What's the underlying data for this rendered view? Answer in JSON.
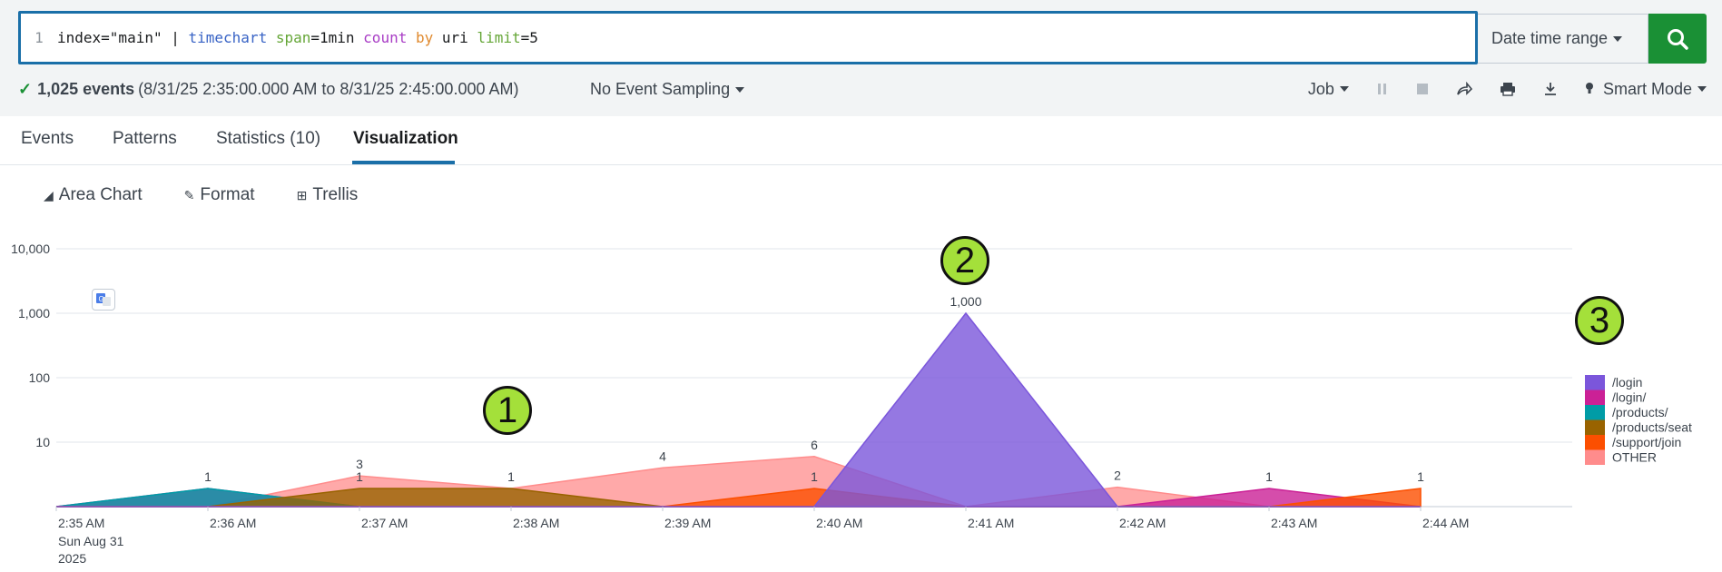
{
  "search": {
    "line_number": "1",
    "query_parts": [
      {
        "t": "index=\"main\" | ",
        "c": ""
      },
      {
        "t": "timechart",
        "c": "q-cmd"
      },
      {
        "t": " ",
        "c": ""
      },
      {
        "t": "span",
        "c": "q-arg"
      },
      {
        "t": "=1min ",
        "c": ""
      },
      {
        "t": "count",
        "c": "q-fn"
      },
      {
        "t": " ",
        "c": ""
      },
      {
        "t": "by",
        "c": "q-kw"
      },
      {
        "t": " uri ",
        "c": ""
      },
      {
        "t": "limit",
        "c": "q-arg"
      },
      {
        "t": "=5",
        "c": ""
      }
    ],
    "date_range_label": "Date time range",
    "search_icon": "search-icon"
  },
  "status": {
    "events": "1,025 events",
    "range": "(8/31/25 2:35:00.000 AM to 8/31/25 2:45:00.000 AM)",
    "sampling": "No Event Sampling",
    "job": "Job",
    "mode": "Smart Mode"
  },
  "tabs": {
    "events": "Events",
    "patterns": "Patterns",
    "statistics": "Statistics (10)",
    "visualization": "Visualization"
  },
  "viz_tools": {
    "area_chart": "Area Chart",
    "format": "Format",
    "trellis": "Trellis"
  },
  "badges": {
    "one": "1",
    "two": "2",
    "three": "3"
  },
  "chart_data": {
    "type": "area",
    "yscale": "log",
    "y_ticks": [
      "10,000",
      "1,000",
      "100",
      "10"
    ],
    "y_tick_values": [
      10000,
      1000,
      100,
      10
    ],
    "x": [
      "2:35 AM",
      "2:36 AM",
      "2:37 AM",
      "2:38 AM",
      "2:39 AM",
      "2:40 AM",
      "2:41 AM",
      "2:42 AM",
      "2:43 AM",
      "2:44 AM"
    ],
    "x_first_sub": [
      "Sun Aug 31",
      "2025"
    ],
    "series": [
      {
        "name": "/login",
        "color": "#7b56db",
        "values": [
          0,
          0,
          0,
          0,
          0,
          0,
          1000,
          0,
          0,
          0
        ]
      },
      {
        "name": "/login/",
        "color": "#cb2196",
        "values": [
          0,
          1,
          0,
          0,
          0,
          0,
          0,
          0,
          1,
          0
        ]
      },
      {
        "name": "/products/",
        "color": "#009ca6",
        "values": [
          0,
          1,
          0,
          0,
          0,
          0,
          0,
          0,
          0,
          0
        ]
      },
      {
        "name": "/products/seat",
        "color": "#996300",
        "values": [
          0,
          0,
          1,
          1,
          0,
          0,
          0,
          0,
          0,
          0
        ]
      },
      {
        "name": "/support/join",
        "color": "#fc4f00",
        "values": [
          0,
          0,
          0,
          0,
          0,
          1,
          0,
          0,
          0,
          1
        ]
      },
      {
        "name": "OTHER",
        "color": "#ff8c8c",
        "values": [
          0,
          0,
          3,
          1,
          4,
          6,
          0,
          2,
          0,
          0
        ]
      }
    ],
    "data_labels": [
      {
        "x": 1,
        "y": 1,
        "text": "1"
      },
      {
        "x": 2,
        "y": 3,
        "text": "3"
      },
      {
        "x": 2,
        "y": 1,
        "text": "1"
      },
      {
        "x": 3,
        "y": 1,
        "text": "1"
      },
      {
        "x": 4,
        "y": 4,
        "text": "4"
      },
      {
        "x": 5,
        "y": 6,
        "text": "6"
      },
      {
        "x": 5,
        "y": 1,
        "text": "1"
      },
      {
        "x": 6,
        "y": 1000,
        "text": "1,000"
      },
      {
        "x": 7,
        "y": 2,
        "text": "2"
      },
      {
        "x": 8,
        "y": 1,
        "text": "1"
      },
      {
        "x": 9,
        "y": 1,
        "text": "1"
      }
    ],
    "legend_position": "right"
  }
}
